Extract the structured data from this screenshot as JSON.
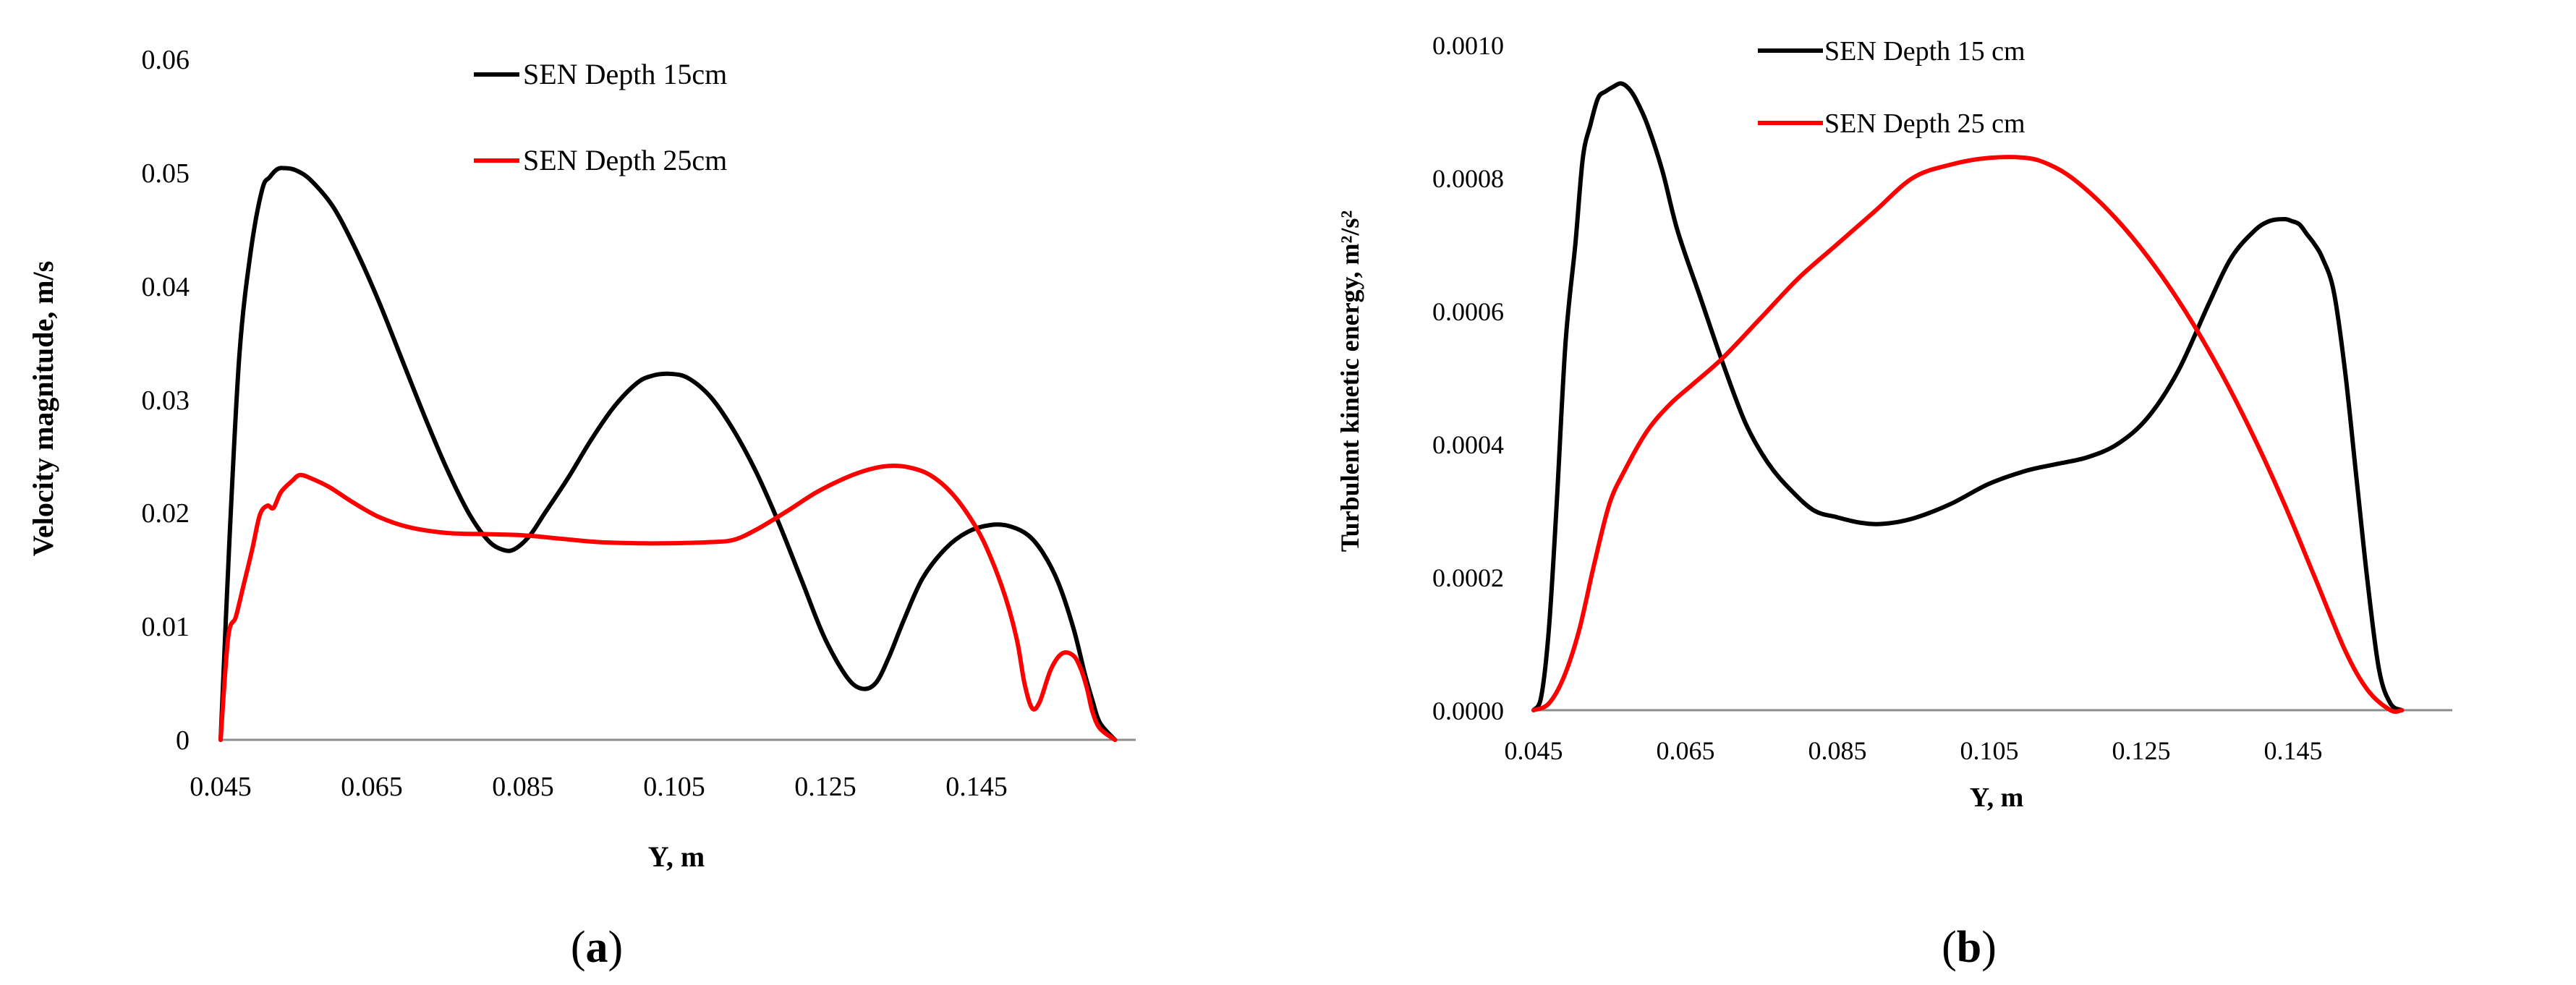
{
  "chart_data": [
    {
      "type": "line",
      "panel_label": "a",
      "title": "",
      "xlabel": "Y, m",
      "ylabel": "Velocity magnitude, m/s",
      "xlim": [
        0.045,
        0.165
      ],
      "ylim": [
        0,
        0.06
      ],
      "xticks": [
        0.045,
        0.065,
        0.085,
        0.105,
        0.125,
        0.145
      ],
      "yticks": [
        0,
        0.01,
        0.02,
        0.03,
        0.04,
        0.05,
        0.06
      ],
      "xtick_labels": [
        "0.045",
        "0.065",
        "0.085",
        "0.105",
        "0.125",
        "0.145"
      ],
      "ytick_labels": [
        "0",
        "0.01",
        "0.02",
        "0.03",
        "0.04",
        "0.05",
        "0.06"
      ],
      "series": [
        {
          "name": "SEN Depth 15cm",
          "color": "#000000",
          "x": [
            0.045,
            0.0462,
            0.0475,
            0.049,
            0.0505,
            0.0515,
            0.0525,
            0.0535,
            0.055,
            0.057,
            0.06,
            0.063,
            0.066,
            0.069,
            0.072,
            0.075,
            0.078,
            0.0805,
            0.0825,
            0.084,
            0.086,
            0.088,
            0.091,
            0.094,
            0.097,
            0.1,
            0.102,
            0.1045,
            0.107,
            0.11,
            0.113,
            0.116,
            0.119,
            0.122,
            0.125,
            0.128,
            0.13,
            0.1318,
            0.1335,
            0.1355,
            0.138,
            0.141,
            0.144,
            0.147,
            0.1495,
            0.152,
            0.154,
            0.156,
            0.158,
            0.1595,
            0.1605,
            0.1615,
            0.1635
          ],
          "y": [
            0.0,
            0.018,
            0.034,
            0.043,
            0.0484,
            0.0495,
            0.0502,
            0.0503,
            0.0501,
            0.0492,
            0.0468,
            0.043,
            0.0385,
            0.0335,
            0.0285,
            0.0238,
            0.0198,
            0.0175,
            0.0167,
            0.0168,
            0.018,
            0.02,
            0.023,
            0.0263,
            0.0292,
            0.0313,
            0.032,
            0.0322,
            0.0318,
            0.0301,
            0.0272,
            0.0235,
            0.019,
            0.014,
            0.009,
            0.0055,
            0.0045,
            0.005,
            0.0072,
            0.0105,
            0.0142,
            0.0168,
            0.0183,
            0.0189,
            0.0188,
            0.018,
            0.0164,
            0.0138,
            0.0098,
            0.0058,
            0.0035,
            0.0015,
            0.0
          ]
        },
        {
          "name": "SEN Depth 25cm",
          "color": "#ff0000",
          "x": [
            0.045,
            0.046,
            0.047,
            0.048,
            0.0492,
            0.0502,
            0.0512,
            0.052,
            0.053,
            0.0545,
            0.0555,
            0.057,
            0.0595,
            0.0625,
            0.066,
            0.07,
            0.075,
            0.08,
            0.085,
            0.09,
            0.095,
            0.1,
            0.105,
            0.11,
            0.113,
            0.116,
            0.12,
            0.124,
            0.128,
            0.131,
            0.1335,
            0.136,
            0.139,
            0.142,
            0.145,
            0.147,
            0.149,
            0.1505,
            0.1515,
            0.1525,
            0.1535,
            0.155,
            0.1565,
            0.158,
            0.159,
            0.1598,
            0.1605,
            0.1615,
            0.1635
          ],
          "y": [
            0.0,
            0.009,
            0.0108,
            0.0135,
            0.0168,
            0.0198,
            0.0206,
            0.0204,
            0.0218,
            0.0228,
            0.0233,
            0.023,
            0.0222,
            0.0209,
            0.0196,
            0.0187,
            0.0182,
            0.0181,
            0.018,
            0.0177,
            0.0174,
            0.0173,
            0.0173,
            0.0174,
            0.0176,
            0.0185,
            0.0201,
            0.0218,
            0.0231,
            0.0238,
            0.0241,
            0.024,
            0.0233,
            0.0216,
            0.0188,
            0.0161,
            0.0125,
            0.0088,
            0.005,
            0.0028,
            0.0033,
            0.0062,
            0.0076,
            0.0074,
            0.0062,
            0.0045,
            0.0025,
            0.001,
            0.0
          ]
        }
      ],
      "legend": "top"
    },
    {
      "type": "line",
      "panel_label": "b",
      "title": "",
      "xlabel": "Y, m",
      "ylabel": "Turbulent kinetic energy, m²/s²",
      "xlim": [
        0.045,
        0.165
      ],
      "ylim": [
        0,
        0.001
      ],
      "xticks": [
        0.045,
        0.065,
        0.085,
        0.105,
        0.125,
        0.145
      ],
      "yticks": [
        0,
        0.0002,
        0.0004,
        0.0006,
        0.0008,
        0.001
      ],
      "xtick_labels": [
        "0.045",
        "0.065",
        "0.085",
        "0.105",
        "0.125",
        "0.145"
      ],
      "ytick_labels": [
        "0.0000",
        "0.0002",
        "0.0004",
        "0.0006",
        "0.0008",
        "0.0010"
      ],
      "series": [
        {
          "name": "SEN Depth 15 cm",
          "color": "#000000",
          "x": [
            0.045,
            0.046,
            0.047,
            0.048,
            0.0492,
            0.0505,
            0.0515,
            0.0525,
            0.0535,
            0.0545,
            0.0555,
            0.0565,
            0.0575,
            0.0585,
            0.06,
            0.062,
            0.064,
            0.067,
            0.07,
            0.073,
            0.076,
            0.079,
            0.082,
            0.085,
            0.088,
            0.091,
            0.095,
            0.1,
            0.105,
            0.11,
            0.114,
            0.118,
            0.122,
            0.126,
            0.13,
            0.134,
            0.137,
            0.14,
            0.142,
            0.144,
            0.145,
            0.146,
            0.147,
            0.148,
            0.149,
            0.1505,
            0.152,
            0.1535,
            0.155,
            0.1565,
            0.158,
            0.1595
          ],
          "y": [
            0.0,
            2e-05,
            0.00012,
            0.0003,
            0.00055,
            0.0007,
            0.00083,
            0.00088,
            0.00092,
            0.00093,
            0.000937,
            0.000942,
            0.000935,
            0.000918,
            0.00088,
            0.00081,
            0.00072,
            0.00062,
            0.00052,
            0.00043,
            0.00037,
            0.00033,
            0.0003,
            0.00029,
            0.000282,
            0.00028,
            0.000288,
            0.00031,
            0.00034,
            0.00036,
            0.00037,
            0.00038,
            0.0004,
            0.00044,
            0.00051,
            0.00061,
            0.00068,
            0.00072,
            0.000735,
            0.000738,
            0.000735,
            0.00073,
            0.000715,
            0.0007,
            0.00068,
            0.00063,
            0.00051,
            0.00035,
            0.00019,
            6e-05,
            1e-05,
            0.0
          ]
        },
        {
          "name": "SEN Depth 25 cm",
          "color": "#ff0000",
          "x": [
            0.045,
            0.047,
            0.049,
            0.051,
            0.053,
            0.055,
            0.057,
            0.06,
            0.063,
            0.066,
            0.07,
            0.075,
            0.08,
            0.085,
            0.09,
            0.095,
            0.1,
            0.105,
            0.11,
            0.113,
            0.116,
            0.12,
            0.124,
            0.128,
            0.132,
            0.136,
            0.14,
            0.144,
            0.148,
            0.152,
            0.155,
            0.158,
            0.1595
          ],
          "y": [
            0.0,
            1e-05,
            5e-05,
            0.00012,
            0.00022,
            0.00031,
            0.00036,
            0.00042,
            0.00046,
            0.00049,
            0.00053,
            0.00059,
            0.00065,
            0.0007,
            0.00075,
            0.0008,
            0.00082,
            0.00083,
            0.00083,
            0.00082,
            0.0008,
            0.00076,
            0.00071,
            0.00065,
            0.00058,
            0.0005,
            0.00041,
            0.00031,
            0.0002,
            9e-05,
            3e-05,
            0.0,
            0.0
          ]
        }
      ],
      "legend": "top"
    }
  ]
}
